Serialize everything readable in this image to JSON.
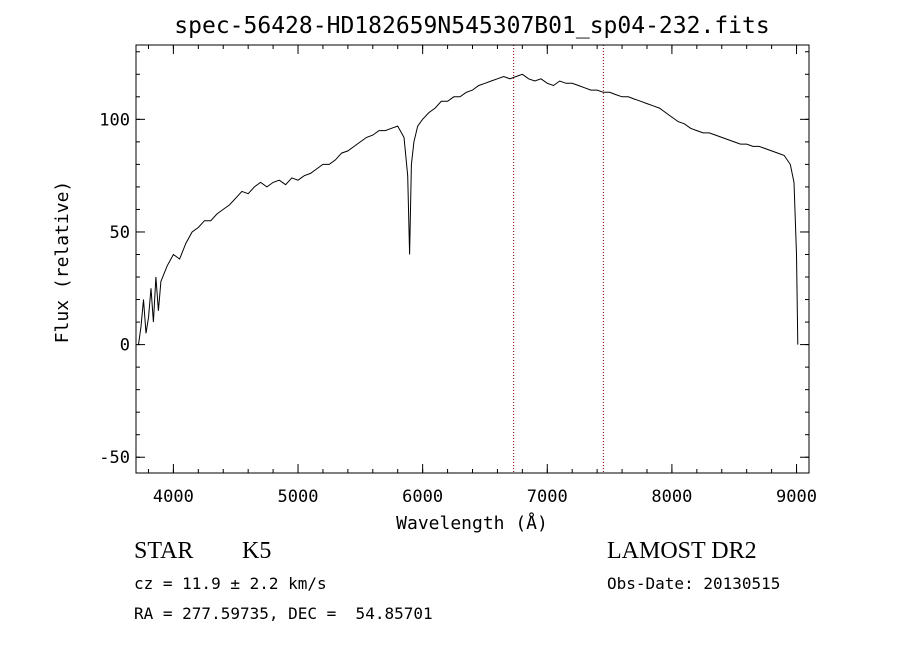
{
  "chart_data": {
    "type": "line",
    "title": "spec-56428-HD182659N545307B01_sp04-232.fits",
    "xlabel": "Wavelength (Å)",
    "ylabel": "Flux (relative)",
    "xlim": [
      3700,
      9100
    ],
    "ylim": [
      -57,
      133
    ],
    "xticks": [
      4000,
      5000,
      6000,
      7000,
      8000,
      9000
    ],
    "yticks": [
      -50,
      0,
      50,
      100
    ],
    "vlines": [
      6730,
      7450
    ],
    "line_color": "#000000",
    "vline_color": "#8b0000",
    "series": [
      {
        "x": [
          3720,
          3740,
          3760,
          3780,
          3800,
          3820,
          3840,
          3860,
          3880,
          3900,
          3950,
          4000,
          4050,
          4100,
          4150,
          4200,
          4250,
          4300,
          4350,
          4400,
          4450,
          4500,
          4550,
          4600,
          4650,
          4700,
          4750,
          4800,
          4850,
          4900,
          4950,
          5000,
          5050,
          5100,
          5150,
          5200,
          5250,
          5300,
          5350,
          5400,
          5450,
          5500,
          5550,
          5600,
          5650,
          5700,
          5750,
          5800,
          5850,
          5880,
          5895,
          5910,
          5930,
          5960,
          6000,
          6050,
          6100,
          6150,
          6200,
          6250,
          6300,
          6350,
          6400,
          6450,
          6500,
          6550,
          6600,
          6650,
          6700,
          6750,
          6800,
          6850,
          6900,
          6950,
          7000,
          7050,
          7100,
          7150,
          7200,
          7250,
          7300,
          7350,
          7400,
          7450,
          7500,
          7550,
          7600,
          7650,
          7700,
          7750,
          7800,
          7850,
          7900,
          7950,
          8000,
          8050,
          8100,
          8150,
          8200,
          8250,
          8300,
          8350,
          8400,
          8450,
          8500,
          8550,
          8600,
          8650,
          8700,
          8750,
          8800,
          8850,
          8900,
          8950,
          8980,
          9000,
          9010
        ],
        "values": [
          0,
          8,
          20,
          5,
          12,
          25,
          10,
          30,
          15,
          28,
          35,
          40,
          38,
          45,
          50,
          52,
          55,
          55,
          58,
          60,
          62,
          65,
          68,
          67,
          70,
          72,
          70,
          72,
          73,
          71,
          74,
          73,
          75,
          76,
          78,
          80,
          80,
          82,
          85,
          86,
          88,
          90,
          92,
          93,
          95,
          95,
          96,
          97,
          92,
          75,
          40,
          80,
          90,
          97,
          100,
          103,
          105,
          108,
          108,
          110,
          110,
          112,
          113,
          115,
          116,
          117,
          118,
          119,
          118,
          119,
          120,
          118,
          117,
          118,
          116,
          115,
          117,
          116,
          116,
          115,
          114,
          113,
          113,
          112,
          112,
          111,
          110,
          110,
          109,
          108,
          107,
          106,
          105,
          103,
          101,
          99,
          98,
          96,
          95,
          94,
          94,
          93,
          92,
          91,
          90,
          89,
          89,
          88,
          88,
          87,
          86,
          85,
          84,
          80,
          72,
          40,
          0
        ]
      }
    ]
  },
  "footer": {
    "object_class": "STAR",
    "subclass": "K5",
    "survey": "LAMOST DR2",
    "redshift": "cz = 11.9 ± 2.2 km/s",
    "obs_date": "Obs-Date: 20130515",
    "coords": "RA = 277.59735, DEC =  54.85701"
  }
}
